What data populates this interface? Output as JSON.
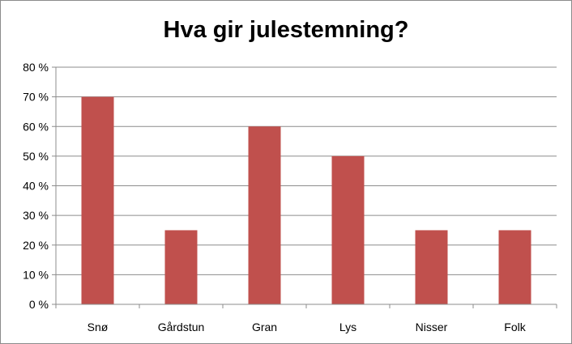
{
  "chart_data": {
    "type": "bar",
    "title": "Hva gir julestemning?",
    "xlabel": "",
    "ylabel": "",
    "categories": [
      "Snø",
      "Gårdstun",
      "Gran",
      "Lys",
      "Nisser",
      "Folk"
    ],
    "values": [
      70,
      25,
      60,
      50,
      25,
      25
    ],
    "ylim": [
      0,
      80
    ],
    "yticks": [
      0,
      10,
      20,
      30,
      40,
      50,
      60,
      70,
      80
    ],
    "ytick_labels": [
      "0 %",
      "10 %",
      "20 %",
      "30 %",
      "40 %",
      "50 %",
      "60 %",
      "70 %",
      "80 %"
    ],
    "grid": true,
    "legend": "none",
    "bar_color": "#c0504d",
    "grid_color": "#8c8c8c"
  }
}
